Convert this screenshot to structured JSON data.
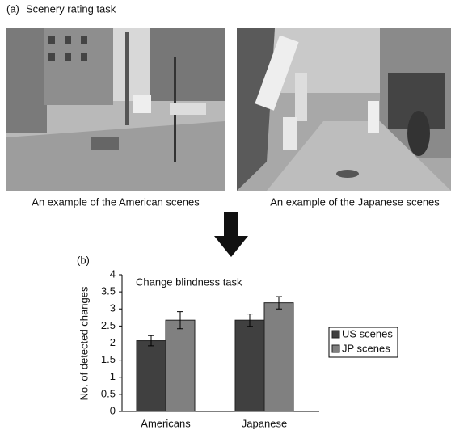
{
  "panel_a": {
    "label": "(a)",
    "title": "Scenery rating task",
    "captions": [
      "An example of the American scenes",
      "An example of the Japanese scenes"
    ]
  },
  "chart_data": {
    "type": "bar",
    "label": "(b)",
    "title": "Change blindness task",
    "y_label": "No. of detected changes",
    "categories": [
      "Americans",
      "Japanese"
    ],
    "series": [
      {
        "name": "US scenes",
        "color": "#404040",
        "values": [
          2.07,
          2.67
        ],
        "errors": [
          0.15,
          0.18
        ]
      },
      {
        "name": "JP scenes",
        "color": "#808080",
        "values": [
          2.67,
          3.18
        ],
        "errors": [
          0.25,
          0.18
        ]
      }
    ],
    "ylim": [
      0,
      4
    ],
    "yticks": [
      0,
      0.5,
      1,
      1.5,
      2,
      2.5,
      3,
      3.5,
      4
    ],
    "legend": "right"
  }
}
